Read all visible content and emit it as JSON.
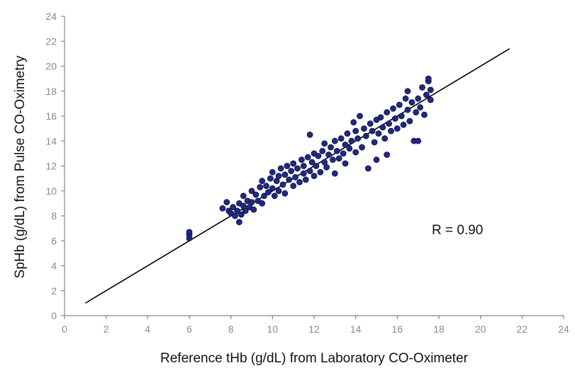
{
  "chart_data": {
    "type": "scatter",
    "title": "",
    "xlabel": "Reference tHb (g/dL) from Laboratory CO-Oximeter",
    "ylabel": "SpHb (g/dL) from Pulse CO-Oximetry",
    "xlim": [
      0,
      24
    ],
    "ylim": [
      0,
      24
    ],
    "xticks": [
      "0",
      "2",
      "4",
      "6",
      "8",
      "10",
      "12",
      "14",
      "16",
      "18",
      "20",
      "22",
      "24"
    ],
    "yticks": [
      "0",
      "2",
      "4",
      "6",
      "8",
      "10",
      "12",
      "14",
      "16",
      "18",
      "20",
      "22",
      "24"
    ],
    "grid": false,
    "legend": "none",
    "annotation": "R = 0.90",
    "marker_color": "#1f2a80",
    "marker_edge_color": "#0a0f40",
    "line_color": "#000000",
    "regression_line": {
      "x": [
        1.0,
        21.4
      ],
      "y": [
        1.0,
        21.4
      ]
    },
    "series": [
      {
        "points": [
          [
            6.0,
            6.2
          ],
          [
            6.0,
            6.5
          ],
          [
            6.0,
            6.7
          ],
          [
            7.6,
            8.6
          ],
          [
            7.8,
            9.1
          ],
          [
            7.9,
            8.4
          ],
          [
            8.0,
            8.2
          ],
          [
            8.1,
            8.7
          ],
          [
            8.2,
            8.0
          ],
          [
            8.3,
            8.4
          ],
          [
            8.4,
            7.5
          ],
          [
            8.4,
            9.0
          ],
          [
            8.5,
            8.1
          ],
          [
            8.6,
            8.8
          ],
          [
            8.6,
            9.6
          ],
          [
            8.7,
            8.4
          ],
          [
            8.8,
            9.2
          ],
          [
            8.9,
            8.7
          ],
          [
            9.0,
            10.0
          ],
          [
            9.0,
            9.1
          ],
          [
            9.1,
            8.5
          ],
          [
            9.2,
            9.7
          ],
          [
            9.3,
            9.2
          ],
          [
            9.4,
            10.3
          ],
          [
            9.5,
            9.0
          ],
          [
            9.5,
            10.8
          ],
          [
            9.6,
            9.6
          ],
          [
            9.7,
            10.4
          ],
          [
            9.8,
            9.9
          ],
          [
            9.9,
            11.0
          ],
          [
            10.0,
            10.2
          ],
          [
            10.0,
            11.5
          ],
          [
            10.1,
            9.6
          ],
          [
            10.2,
            10.8
          ],
          [
            10.3,
            11.2
          ],
          [
            10.3,
            10.0
          ],
          [
            10.4,
            11.8
          ],
          [
            10.5,
            10.5
          ],
          [
            10.6,
            11.3
          ],
          [
            10.6,
            9.8
          ],
          [
            10.7,
            12.0
          ],
          [
            10.8,
            10.9
          ],
          [
            10.9,
            11.6
          ],
          [
            11.0,
            10.4
          ],
          [
            11.0,
            12.2
          ],
          [
            11.1,
            11.1
          ],
          [
            11.2,
            11.8
          ],
          [
            11.3,
            10.7
          ],
          [
            11.4,
            12.5
          ],
          [
            11.5,
            11.4
          ],
          [
            11.5,
            12.0
          ],
          [
            11.6,
            10.9
          ],
          [
            11.7,
            12.7
          ],
          [
            11.8,
            11.6
          ],
          [
            11.8,
            14.5
          ],
          [
            11.9,
            12.3
          ],
          [
            12.0,
            11.2
          ],
          [
            12.0,
            13.0
          ],
          [
            12.1,
            12.0
          ],
          [
            12.2,
            12.8
          ],
          [
            12.3,
            11.5
          ],
          [
            12.4,
            13.2
          ],
          [
            12.5,
            12.3
          ],
          [
            12.5,
            13.8
          ],
          [
            12.6,
            11.9
          ],
          [
            12.7,
            12.9
          ],
          [
            12.8,
            13.5
          ],
          [
            12.9,
            12.5
          ],
          [
            13.0,
            14.0
          ],
          [
            13.0,
            11.4
          ],
          [
            13.1,
            13.2
          ],
          [
            13.2,
            12.6
          ],
          [
            13.3,
            14.2
          ],
          [
            13.4,
            13.0
          ],
          [
            13.5,
            13.7
          ],
          [
            13.5,
            12.2
          ],
          [
            13.6,
            14.6
          ],
          [
            13.7,
            13.4
          ],
          [
            13.8,
            14.0
          ],
          [
            13.9,
            15.5
          ],
          [
            14.0,
            13.1
          ],
          [
            14.0,
            14.8
          ],
          [
            14.1,
            14.2
          ],
          [
            14.2,
            16.0
          ],
          [
            14.3,
            13.5
          ],
          [
            14.4,
            15.0
          ],
          [
            14.5,
            14.4
          ],
          [
            14.6,
            11.8
          ],
          [
            14.7,
            15.4
          ],
          [
            14.8,
            14.8
          ],
          [
            14.9,
            13.9
          ],
          [
            15.0,
            15.7
          ],
          [
            15.0,
            12.5
          ],
          [
            15.1,
            14.6
          ],
          [
            15.2,
            15.9
          ],
          [
            15.3,
            15.1
          ],
          [
            15.4,
            14.2
          ],
          [
            15.5,
            16.3
          ],
          [
            15.5,
            12.9
          ],
          [
            15.6,
            15.4
          ],
          [
            15.7,
            14.8
          ],
          [
            15.8,
            16.6
          ],
          [
            15.9,
            15.8
          ],
          [
            16.0,
            15.0
          ],
          [
            16.1,
            16.9
          ],
          [
            16.2,
            16.0
          ],
          [
            16.3,
            15.3
          ],
          [
            16.4,
            17.4
          ],
          [
            16.5,
            18.0
          ],
          [
            16.5,
            16.5
          ],
          [
            16.6,
            15.6
          ],
          [
            16.7,
            17.1
          ],
          [
            16.8,
            14.0
          ],
          [
            16.9,
            16.3
          ],
          [
            17.0,
            17.4
          ],
          [
            17.1,
            16.7
          ],
          [
            17.2,
            18.3
          ],
          [
            17.3,
            16.1
          ],
          [
            17.4,
            17.7
          ],
          [
            17.5,
            18.8
          ],
          [
            17.5,
            19.0
          ],
          [
            17.6,
            17.3
          ],
          [
            17.6,
            18.1
          ],
          [
            17.0,
            14.0
          ]
        ]
      }
    ]
  }
}
